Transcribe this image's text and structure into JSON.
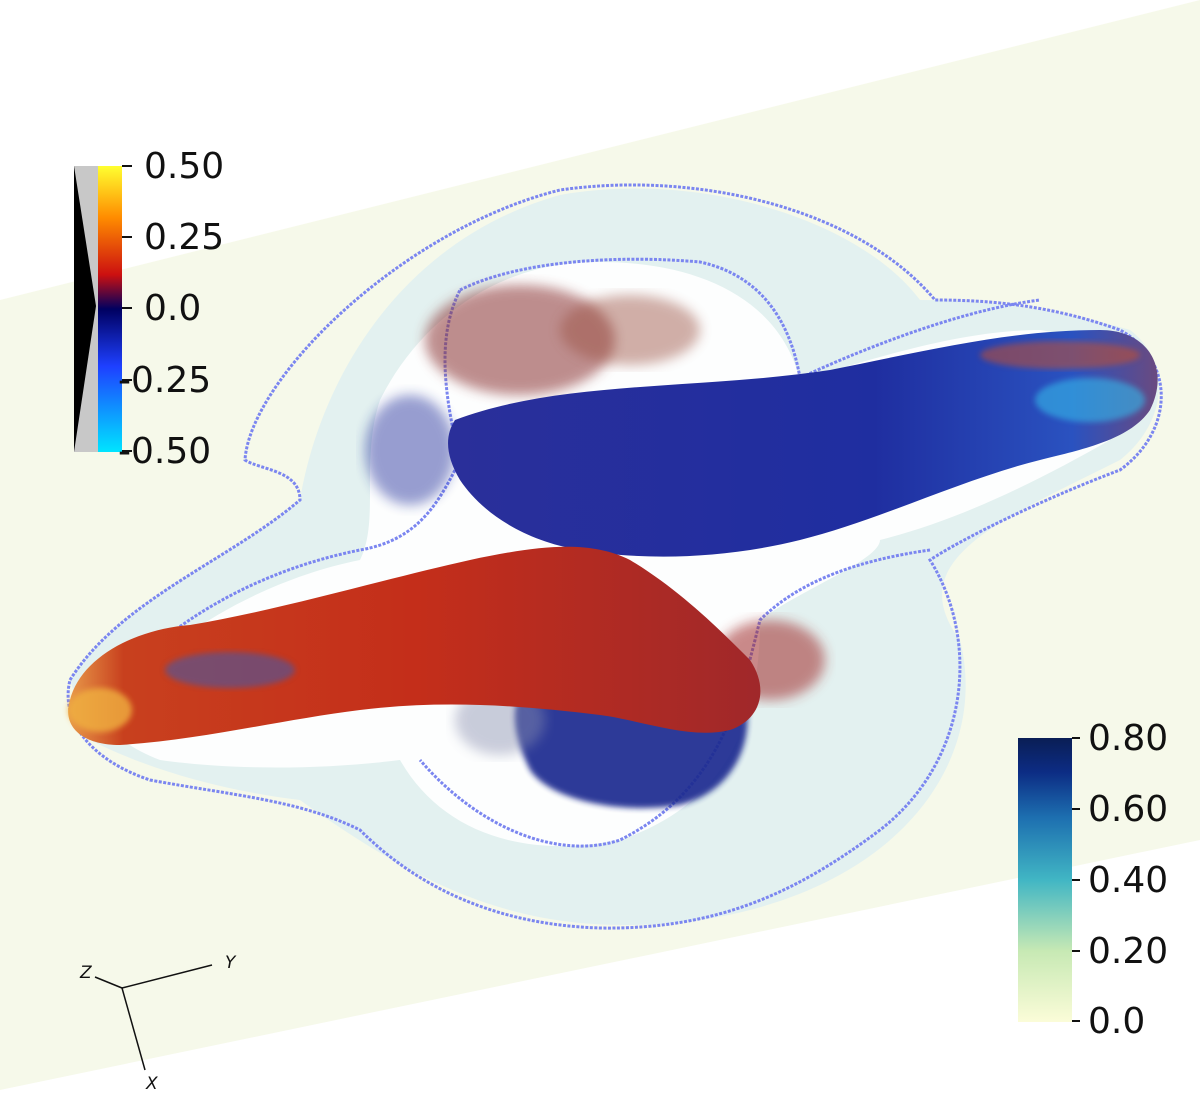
{
  "colorbar_velocity": {
    "labels": [
      "0.50",
      "0.25",
      "0.0",
      "-0.25",
      "-0.50"
    ],
    "colors": [
      "#00e5ff",
      "#1e40ff",
      "#000060",
      "#cc1010",
      "#ff8c00",
      "#ffff30"
    ]
  },
  "colorbar_density": {
    "labels": [
      "0.80",
      "0.60",
      "0.40",
      "0.20",
      "0.0"
    ],
    "colors": [
      "#fbfcd8",
      "#c7e9b4",
      "#41b6c4",
      "#1d6fb0",
      "#0c2c84",
      "#0a1e55"
    ]
  },
  "axes": {
    "z": "Z",
    "y": "Y",
    "x": "X"
  },
  "colors": {
    "jet_blue": "#1c2a9a",
    "jet_red": "#c42e1a",
    "contour": "#7b86f0",
    "plane": "#f6f9ea",
    "cocoon": "#d6ecf3"
  }
}
